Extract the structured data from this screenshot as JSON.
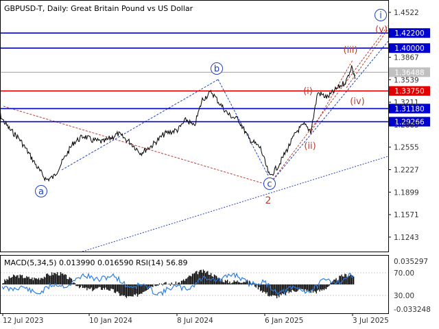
{
  "header": {
    "title": "GBPUSD-T, Daily:  Great Britain Pound vs US Dollar"
  },
  "indicator_header": {
    "label": "MACD(5,34,5) 0.013990 0.016590 RSI(14) 56.89"
  },
  "colors": {
    "price": "#000000",
    "blue_level": "#0000cd",
    "red_level": "#e00000",
    "blue_wave": "#1f3fbf",
    "red_wave": "#c0392b",
    "macd_hist": "#000000",
    "rsi": "#2b7de0",
    "grid": "#c8c8c8",
    "axis_text": "#333333"
  },
  "chart_data": [
    {
      "type": "line",
      "name": "price",
      "x": [
        "2023-06-27",
        "2023-07-12",
        "2023-07-27",
        "2023-08-15",
        "2023-09-05",
        "2023-09-25",
        "2023-10-10",
        "2023-10-25",
        "2023-11-15",
        "2023-12-05",
        "2023-12-27",
        "2024-01-10",
        "2024-02-05",
        "2024-03-06",
        "2024-04-01",
        "2024-04-22",
        "2024-05-15",
        "2024-06-10",
        "2024-07-08",
        "2024-07-25",
        "2024-08-10",
        "2024-08-27",
        "2024-09-15",
        "2024-10-01",
        "2024-10-20",
        "2024-11-10",
        "2024-12-01",
        "2024-12-25",
        "2025-01-13",
        "2025-02-01",
        "2025-02-20",
        "2025-03-10",
        "2025-03-25",
        "2025-04-08",
        "2025-04-22",
        "2025-05-12",
        "2025-06-01",
        "2025-06-20",
        "2025-07-01",
        "2025-07-08"
      ],
      "y": [
        1.318,
        1.295,
        1.281,
        1.268,
        1.245,
        1.222,
        1.208,
        1.212,
        1.238,
        1.262,
        1.272,
        1.266,
        1.263,
        1.275,
        1.262,
        1.247,
        1.258,
        1.275,
        1.281,
        1.296,
        1.285,
        1.325,
        1.336,
        1.32,
        1.303,
        1.295,
        1.268,
        1.254,
        1.212,
        1.23,
        1.255,
        1.279,
        1.288,
        1.279,
        1.335,
        1.328,
        1.341,
        1.352,
        1.374,
        1.355
      ]
    },
    {
      "type": "table",
      "name": "levels",
      "price_axis_ticks": [
        1.4522,
        1.3867,
        1.3539,
        1.3211,
        1.2883,
        1.2555,
        1.2227,
        1.1899,
        1.1571,
        1.1243
      ],
      "horizontal_levels": [
        {
          "price": 1.422,
          "label": "1.42200",
          "color": "blue"
        },
        {
          "price": 1.4,
          "label": "1.40000",
          "color": "blue"
        },
        {
          "price": 1.36488,
          "label": "1.36488",
          "color": "gray"
        },
        {
          "price": 1.3375,
          "label": "1.33750",
          "color": "red"
        },
        {
          "price": 1.3118,
          "label": "1.31180",
          "color": "blue"
        },
        {
          "price": 1.29266,
          "label": "1.29266",
          "color": "blue"
        }
      ],
      "time_axis_ticks": [
        "12 Jul 2023",
        "10 Jan 2024",
        "8 Jul 2024",
        "6 Jan 2025",
        "3 Jul 2025"
      ],
      "indicator_ticks": [
        "0.035297",
        "70.00",
        "30.00",
        "-0.033248"
      ],
      "wave_labels": [
        {
          "text": "a",
          "style": "circle"
        },
        {
          "text": "b",
          "style": "circle"
        },
        {
          "text": "c",
          "style": "circle"
        },
        {
          "text": "i",
          "style": "circle"
        },
        {
          "text": "2",
          "style": "plain"
        },
        {
          "text": "(i)",
          "style": "red"
        },
        {
          "text": "(ii)",
          "style": "red"
        },
        {
          "text": "(iii)",
          "style": "red"
        },
        {
          "text": "(iv)",
          "style": "red"
        },
        {
          "text": "(v)",
          "style": "red"
        }
      ]
    }
  ]
}
